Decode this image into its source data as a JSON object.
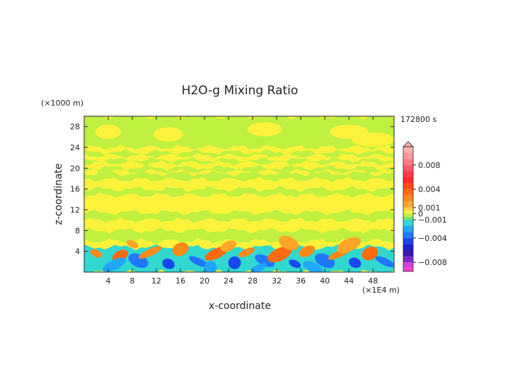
{
  "chart_data": {
    "type": "heatmap",
    "title": "H2O-g Mixing Ratio",
    "time_label": "172800 s",
    "xlabel": "x-coordinate",
    "ylabel": "z-coordinate",
    "x_unit": "(×1E4 m)",
    "y_unit": "(×1000 m)",
    "xlim": [
      0,
      51.5
    ],
    "ylim": [
      0,
      30
    ],
    "x_ticks": [
      4,
      8,
      12,
      16,
      20,
      24,
      28,
      32,
      36,
      40,
      44,
      48
    ],
    "y_ticks": [
      4,
      8,
      12,
      16,
      20,
      24,
      28
    ],
    "x_tick_labels": [
      "4",
      "8",
      "12",
      "16",
      "20",
      "24",
      "28",
      "32",
      "36",
      "40",
      "44",
      "48"
    ],
    "y_tick_labels": [
      "4",
      "8",
      "12",
      "16",
      "20",
      "24",
      "28"
    ],
    "colorbar": {
      "range": [
        -0.0095,
        0.011
      ],
      "labels": [
        {
          "value": 0.008,
          "text": "0.008"
        },
        {
          "value": 0.004,
          "text": "0.004"
        },
        {
          "value": 0.001,
          "text": "0.001"
        },
        {
          "value": 0.0,
          "text": "0"
        },
        {
          "value": -0.001,
          "text": "−0.001"
        },
        {
          "value": -0.004,
          "text": "−0.004"
        },
        {
          "value": -0.008,
          "text": "−0.008"
        }
      ],
      "bands": [
        {
          "from": 0.01,
          "to": 0.011,
          "color": "#ffb0b0"
        },
        {
          "from": 0.009,
          "to": 0.01,
          "color": "#ff9aa0"
        },
        {
          "from": 0.008,
          "to": 0.009,
          "color": "#ff7b86"
        },
        {
          "from": 0.007,
          "to": 0.008,
          "color": "#ff5a6a"
        },
        {
          "from": 0.006,
          "to": 0.007,
          "color": "#ff3c48"
        },
        {
          "from": 0.005,
          "to": 0.006,
          "color": "#ff2a2a"
        },
        {
          "from": 0.004,
          "to": 0.005,
          "color": "#ff4a18"
        },
        {
          "from": 0.003,
          "to": 0.004,
          "color": "#ff6a10"
        },
        {
          "from": 0.002,
          "to": 0.003,
          "color": "#ff8a1a"
        },
        {
          "from": 0.001,
          "to": 0.002,
          "color": "#ffa62a"
        },
        {
          "from": 0.0005,
          "to": 0.001,
          "color": "#ffd040"
        },
        {
          "from": 0.0,
          "to": 0.0005,
          "color": "#fff23a"
        },
        {
          "from": -0.0005,
          "to": 0.0,
          "color": "#bff040"
        },
        {
          "from": -0.001,
          "to": -0.0005,
          "color": "#7ee060"
        },
        {
          "from": -0.002,
          "to": -0.001,
          "color": "#30d8d0"
        },
        {
          "from": -0.003,
          "to": -0.002,
          "color": "#20a8ff"
        },
        {
          "from": -0.004,
          "to": -0.003,
          "color": "#2078ff"
        },
        {
          "from": -0.005,
          "to": -0.004,
          "color": "#1848f0"
        },
        {
          "from": -0.006,
          "to": -0.005,
          "color": "#1a1ed0"
        },
        {
          "from": -0.007,
          "to": -0.006,
          "color": "#3818b8"
        },
        {
          "from": -0.008,
          "to": -0.007,
          "color": "#7a2ac8"
        },
        {
          "from": -0.009,
          "to": -0.008,
          "color": "#d840d8"
        },
        {
          "from": -0.0095,
          "to": -0.009,
          "color": "#ff40c0"
        }
      ]
    },
    "field": {
      "background_color": "#fff23a",
      "regions": [
        {
          "label": "upper-green",
          "color": "#bff040",
          "y_range": [
            24,
            30
          ]
        },
        {
          "label": "stripe-1",
          "color": "#bff040",
          "y_range": [
            22.4,
            23.1
          ]
        },
        {
          "label": "stripe-2",
          "color": "#bff040",
          "y_range": [
            21.0,
            21.6
          ]
        },
        {
          "label": "stripe-3",
          "color": "#bff040",
          "y_range": [
            19.4,
            20.1
          ]
        },
        {
          "label": "mid-band-1",
          "color": "#bff040",
          "y_range": [
            17.8,
            19.0
          ]
        },
        {
          "label": "mid-band-2",
          "color": "#bff040",
          "y_range": [
            14.8,
            16.0
          ]
        },
        {
          "label": "low-mid-band",
          "color": "#bff040",
          "y_range": [
            10.0,
            11.5
          ]
        },
        {
          "label": "lower-green",
          "color": "#bff040",
          "y_range": [
            6.0,
            8.0
          ]
        },
        {
          "label": "surface-cyan",
          "color": "#30d8d0",
          "y_range": [
            0,
            4.8
          ]
        }
      ]
    }
  }
}
